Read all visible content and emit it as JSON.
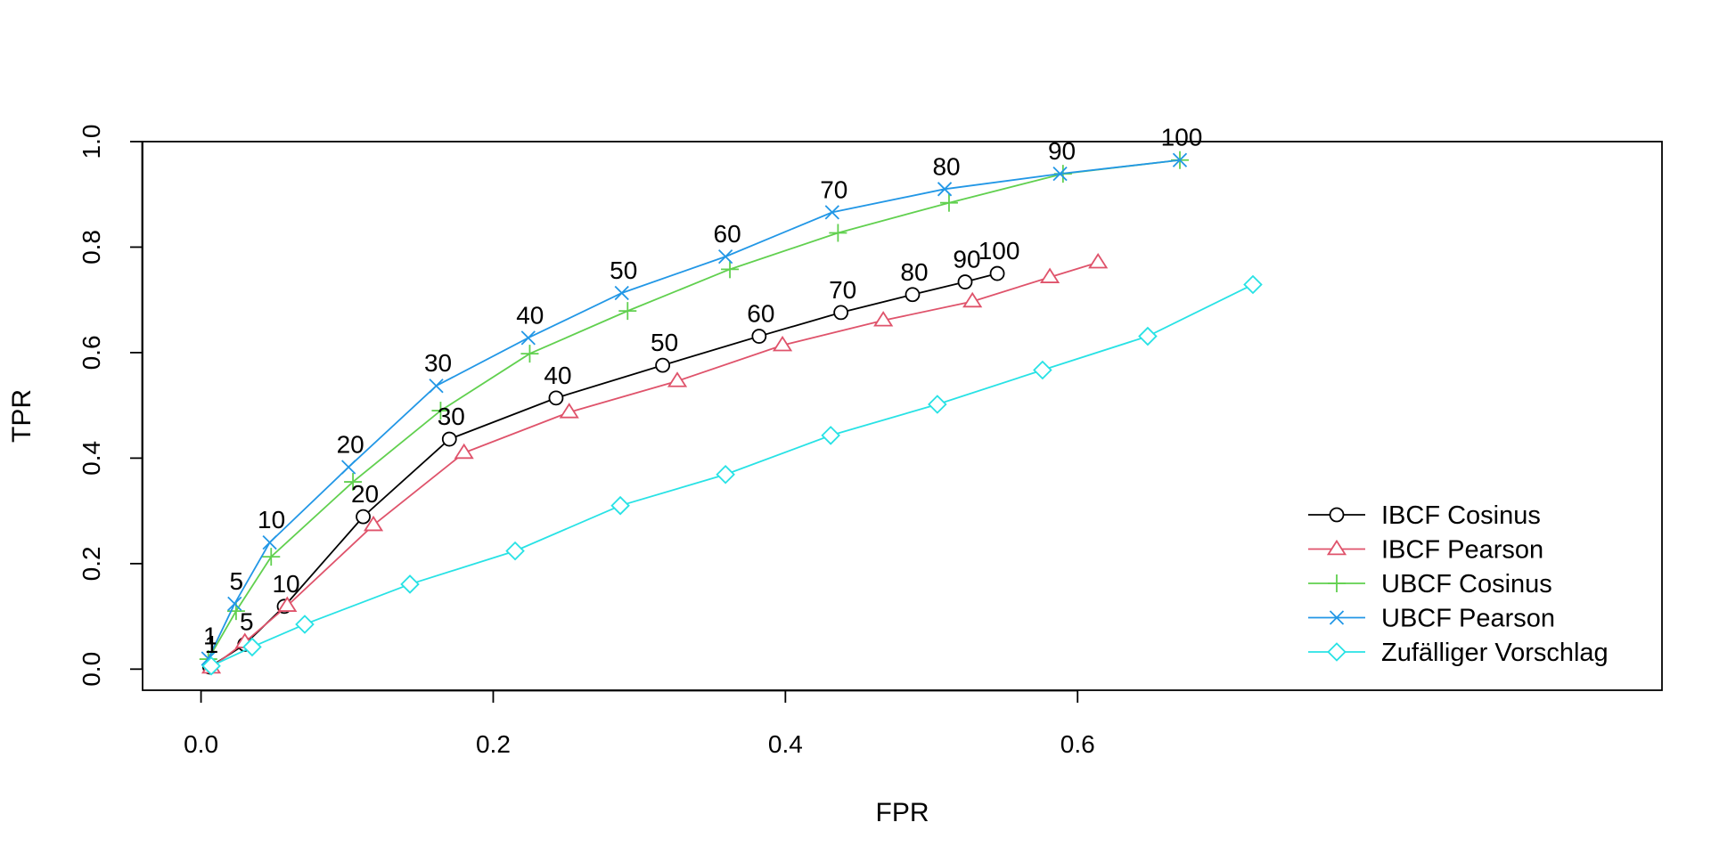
{
  "chart_data": {
    "type": "line",
    "title": "",
    "xlabel": "FPR",
    "ylabel": "TPR",
    "xlim": [
      -0.04,
      1.0
    ],
    "ylim": [
      -0.04,
      1.0
    ],
    "x_ticks": [
      0.0,
      0.2,
      0.4,
      0.6
    ],
    "y_ticks": [
      0.0,
      0.2,
      0.4,
      0.6,
      0.8,
      1.0
    ],
    "x_tick_labels": [
      "0.0",
      "0.2",
      "0.4",
      "0.6"
    ],
    "y_tick_labels": [
      "0.0",
      "0.2",
      "0.4",
      "0.6",
      "0.8",
      "1.0"
    ],
    "grid": false,
    "legend_position": "bottom-right",
    "series": [
      {
        "name": "IBCF Cosinus",
        "color": "#000000",
        "marker": "circle",
        "x": [
          0.006,
          0.03,
          0.057,
          0.111,
          0.17,
          0.243,
          0.316,
          0.382,
          0.438,
          0.487,
          0.523,
          0.545
        ],
        "y": [
          0.004,
          0.047,
          0.119,
          0.289,
          0.436,
          0.514,
          0.576,
          0.631,
          0.676,
          0.71,
          0.734,
          0.75
        ],
        "point_labels": [
          "1",
          "5",
          "10",
          "20",
          "30",
          "40",
          "50",
          "60",
          "70",
          "80",
          "90",
          "100"
        ]
      },
      {
        "name": "IBCF Pearson",
        "color": "#DF536B",
        "marker": "triangle",
        "x": [
          0.007,
          0.03,
          0.059,
          0.118,
          0.18,
          0.252,
          0.326,
          0.398,
          0.467,
          0.528,
          0.581,
          0.614
        ],
        "y": [
          0.003,
          0.051,
          0.12,
          0.273,
          0.41,
          0.487,
          0.546,
          0.614,
          0.661,
          0.697,
          0.743,
          0.771
        ],
        "point_labels": []
      },
      {
        "name": "UBCF Cosinus",
        "color": "#61D04F",
        "marker": "plus",
        "x": [
          0.005,
          0.024,
          0.048,
          0.104,
          0.164,
          0.225,
          0.292,
          0.362,
          0.436,
          0.512,
          0.59,
          0.67
        ],
        "y": [
          0.019,
          0.11,
          0.213,
          0.355,
          0.49,
          0.598,
          0.679,
          0.758,
          0.827,
          0.884,
          0.939,
          0.965
        ],
        "point_labels": []
      },
      {
        "name": "UBCF Pearson",
        "color": "#2297E6",
        "marker": "cross",
        "x": [
          0.005,
          0.023,
          0.047,
          0.101,
          0.161,
          0.224,
          0.288,
          0.359,
          0.432,
          0.509,
          0.588,
          0.67
        ],
        "y": [
          0.02,
          0.124,
          0.24,
          0.383,
          0.537,
          0.628,
          0.713,
          0.782,
          0.866,
          0.91,
          0.939,
          0.965
        ],
        "point_labels": [
          "1",
          "5",
          "10",
          "20",
          "30",
          "40",
          "50",
          "60",
          "70",
          "80",
          "90",
          "100"
        ]
      },
      {
        "name": "Zufälliger Vorschlag",
        "color": "#28E2E5",
        "marker": "diamond",
        "x": [
          0.007,
          0.035,
          0.071,
          0.143,
          0.215,
          0.287,
          0.359,
          0.431,
          0.504,
          0.576,
          0.648,
          0.72
        ],
        "y": [
          0.006,
          0.042,
          0.085,
          0.161,
          0.224,
          0.31,
          0.369,
          0.443,
          0.502,
          0.567,
          0.631,
          0.729
        ],
        "point_labels": []
      }
    ]
  }
}
